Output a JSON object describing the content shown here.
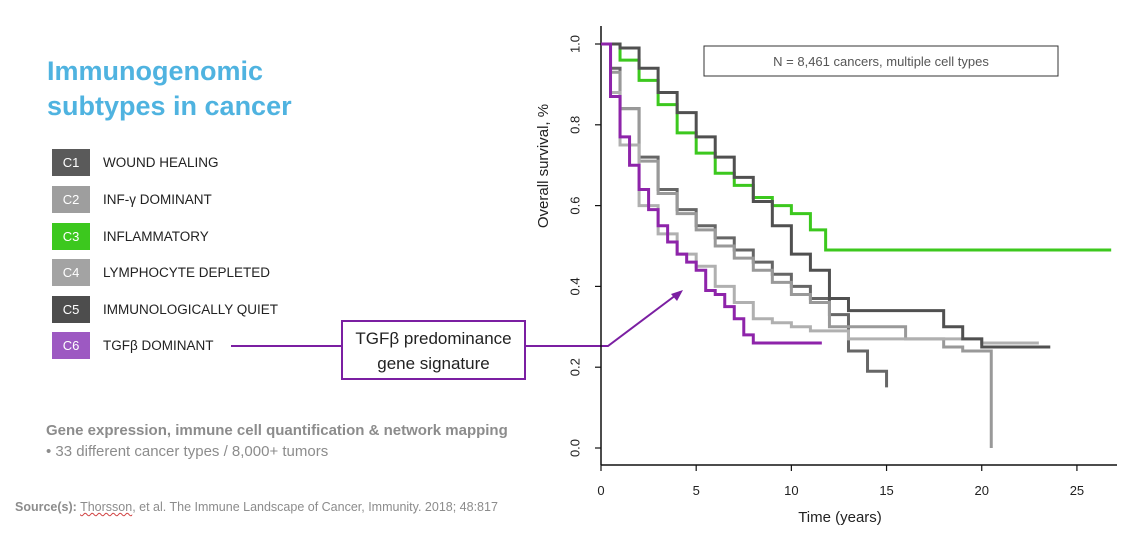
{
  "slide": {
    "title_line1": "Immunogenomic",
    "title_line2": "subtypes in cancer",
    "legend": [
      {
        "code": "C1",
        "label": "WOUND HEALING",
        "color": "#5a5a5a"
      },
      {
        "code": "C2",
        "label": "INF-γ DOMINANT",
        "color": "#9e9e9e"
      },
      {
        "code": "C3",
        "label": "INFLAMMATORY",
        "color": "#3cc81e"
      },
      {
        "code": "C4",
        "label": "LYMPHOCYTE DEPLETED",
        "color": "#a3a3a3"
      },
      {
        "code": "C5",
        "label": "IMMUNOLOGICALLY QUIET",
        "color": "#4d4d4d"
      },
      {
        "code": "C6",
        "label": "TGFβ DOMINANT",
        "color": "#9d59c2"
      }
    ],
    "note_heading": "Gene expression, immune cell quantification & network mapping",
    "note_bullet": "•  33 different cancer types / 8,000+ tumors",
    "source_label": "Source(s):",
    "source_ref": "Thorsson",
    "source_rest": ", et al. The Immune Landscape of Cancer, Immunity. 2018; 48:817",
    "callout_line1": "TGFβ predominance",
    "callout_line2": "gene signature",
    "accent_color": "#7b1fa2"
  },
  "chart_data": {
    "type": "line",
    "subtype": "kaplan-meier step",
    "title": "",
    "annotation": "N = 8,461 cancers, multiple cell types",
    "xlabel": "Time (years)",
    "ylabel": "Overall survival, %",
    "xlim": [
      0,
      27
    ],
    "ylim": [
      0,
      1.0
    ],
    "xticks": [
      "0",
      "5",
      "10",
      "15",
      "20",
      "25"
    ],
    "yticks": [
      "0.0",
      "0.2",
      "0.4",
      "0.6",
      "0.8",
      "1.0"
    ],
    "series": [
      {
        "name": "C1",
        "color": "#666666",
        "x": [
          0,
          0.5,
          1,
          2,
          3,
          4,
          5,
          6,
          7,
          8,
          9,
          10,
          11,
          12,
          13,
          14,
          15
        ],
        "y": [
          1.0,
          0.94,
          0.84,
          0.72,
          0.64,
          0.59,
          0.55,
          0.52,
          0.49,
          0.46,
          0.43,
          0.4,
          0.37,
          0.33,
          0.24,
          0.19,
          0.15
        ]
      },
      {
        "name": "C2",
        "color": "#999999",
        "x": [
          0,
          0.5,
          1,
          2,
          3,
          4,
          5,
          6,
          7,
          8,
          9,
          10,
          11,
          12,
          16,
          18,
          19,
          20.5,
          20.5
        ],
        "y": [
          1.0,
          0.93,
          0.84,
          0.71,
          0.63,
          0.58,
          0.54,
          0.5,
          0.47,
          0.44,
          0.41,
          0.38,
          0.36,
          0.3,
          0.27,
          0.25,
          0.24,
          0.24,
          0.0
        ]
      },
      {
        "name": "C3",
        "color": "#3cc81e",
        "x": [
          0,
          1,
          2,
          3,
          4,
          5,
          6,
          7,
          8,
          9,
          10,
          11,
          11.8,
          15,
          20,
          25,
          26.8
        ],
        "y": [
          1.0,
          0.96,
          0.91,
          0.85,
          0.78,
          0.73,
          0.68,
          0.65,
          0.62,
          0.6,
          0.58,
          0.54,
          0.49,
          0.49,
          0.49,
          0.49,
          0.49
        ]
      },
      {
        "name": "C4",
        "color": "#b0b0b0",
        "x": [
          0,
          0.5,
          1,
          2,
          3,
          4,
          5,
          6,
          7,
          8,
          9,
          10,
          11,
          12,
          13,
          20,
          23
        ],
        "y": [
          1.0,
          0.88,
          0.75,
          0.6,
          0.53,
          0.48,
          0.45,
          0.4,
          0.36,
          0.32,
          0.31,
          0.3,
          0.29,
          0.29,
          0.27,
          0.26,
          0.26
        ]
      },
      {
        "name": "C5",
        "color": "#505050",
        "x": [
          0,
          1,
          2,
          3,
          4,
          5,
          6,
          7,
          8,
          9,
          10,
          11,
          12,
          13,
          14,
          15,
          18,
          19,
          20,
          23.6
        ],
        "y": [
          1.0,
          0.99,
          0.94,
          0.88,
          0.83,
          0.77,
          0.72,
          0.67,
          0.61,
          0.55,
          0.48,
          0.44,
          0.37,
          0.34,
          0.34,
          0.34,
          0.3,
          0.27,
          0.25,
          0.25
        ]
      },
      {
        "name": "C6",
        "color": "#8e24aa",
        "x": [
          0,
          0.5,
          1,
          1.5,
          2,
          2.5,
          3,
          3.5,
          4,
          4.5,
          5,
          5.5,
          6,
          6.5,
          7,
          7.5,
          8,
          9,
          10,
          11.6
        ],
        "y": [
          1.0,
          0.87,
          0.77,
          0.7,
          0.64,
          0.59,
          0.55,
          0.51,
          0.48,
          0.46,
          0.44,
          0.39,
          0.38,
          0.35,
          0.32,
          0.28,
          0.26,
          0.26,
          0.26,
          0.26
        ]
      }
    ]
  }
}
